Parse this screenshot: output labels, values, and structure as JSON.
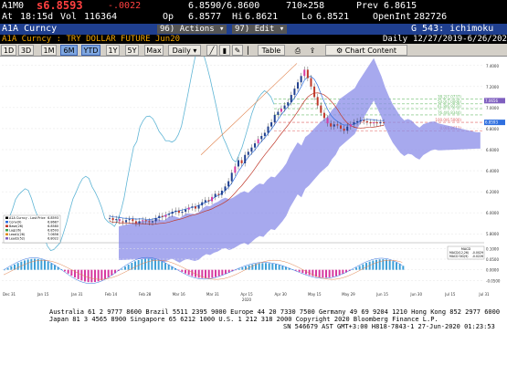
{
  "quote": {
    "ticker": "A1M0",
    "last": "s6.8593",
    "change": "-.0022",
    "bid_ask": "6.8590/6.8600",
    "size": "710×258",
    "prev_label": "Prev",
    "prev": "6.8615",
    "time_label": "At",
    "time": "18:15d",
    "vol_label": "Vol",
    "vol": "116364",
    "open_label": "Op",
    "open": "6.8577",
    "high_label": "Hi",
    "high": "6.8621",
    "low_label": "Lo",
    "low": "6.8521",
    "oi_label": "OpenInt",
    "oi": "282726"
  },
  "command": {
    "security": "A1A Curncy",
    "actions_num": "96)",
    "actions_label": "Actions",
    "edit_num": "97)",
    "edit_label": "Edit",
    "page": "G 543: ichimoku"
  },
  "info": {
    "description": "A1A Curncy : TRY DOLLAR FUTURE Jun20",
    "period_label": "Daily",
    "date_range": "12/27/2019-6/26/2020"
  },
  "toolbar": {
    "ranges": [
      "1D",
      "3D",
      "1M",
      "6M",
      "YTD",
      "1Y",
      "5Y",
      "Max"
    ],
    "active_range": "6M",
    "freq": "Daily",
    "table_label": "Table",
    "chart_content_label": "Chart Content"
  },
  "legend": {
    "items": [
      {
        "name": "A1A Curncy - Last Price",
        "value": "6.8593"
      },
      {
        "name": "Conv(9)",
        "value": "6.8687"
      },
      {
        "name": "Base(26)",
        "value": "6.8580"
      },
      {
        "name": "Lag(26)",
        "value": "6.8593"
      },
      {
        "name": "Lead1(26)",
        "value": "7.0656"
      },
      {
        "name": "Lead2(52)",
        "value": "6.8022"
      }
    ],
    "colors": [
      "#000000",
      "#2f6fdf",
      "#c0392b",
      "#2e9f4f",
      "#e08a1e",
      "#7f5fbf"
    ]
  },
  "macd_legend": {
    "title": "MACD",
    "items": [
      {
        "name": "MACD(12,26)",
        "value": "-0.0029"
      },
      {
        "name": "MACD SIG(9)",
        "value": "-0.0226"
      }
    ]
  },
  "fib": {
    "levels": [
      {
        "label": "38.2(7.0737)",
        "y": 7.08
      },
      {
        "label": "50.0(7.0006)",
        "y": 7.035
      },
      {
        "label": "61.8(6.9233)",
        "y": 6.99
      },
      {
        "label": "76.4(6.8344)",
        "y": 6.93
      },
      {
        "label": "100.0(6.5000)",
        "y": 6.86
      },
      {
        "label": "0.0(6.8611)",
        "y": 6.78
      }
    ],
    "top_label": "23.6(7.1684)",
    "peak_label": "100.0(7.1000)"
  },
  "axis": {
    "y_ticks": [
      "7.4000",
      "7.2000",
      "7.0000",
      "6.8000",
      "6.6000",
      "6.4000",
      "6.2000",
      "6.0000",
      "5.8000"
    ],
    "y_values": [
      7.4,
      7.2,
      7.0,
      6.8,
      6.6,
      6.4,
      6.2,
      6.0,
      5.8
    ],
    "macd_ticks": [
      "0.1000",
      "0.0500",
      "0.0000",
      "-0.0500"
    ],
    "macd_values": [
      0.1,
      0.05,
      0.0,
      -0.05
    ],
    "x_labels": [
      "Dec 31",
      "Jan 15",
      "Jan 31",
      "Feb 14",
      "Feb 28",
      "Mar 16",
      "Mar 31",
      "Apr 15",
      "Apr 30",
      "May 15",
      "May 29",
      "Jun 15",
      "Jun 30",
      "Jul 15",
      "Jul 31"
    ],
    "year_label": "2020",
    "last_price_tag": "6.8593",
    "lead_tag": "7.0656"
  },
  "chart_data": {
    "type": "line",
    "ylim": [
      5.75,
      7.45
    ],
    "close": [
      5.95,
      5.93,
      5.94,
      5.92,
      5.91,
      5.93,
      5.94,
      5.92,
      5.9,
      5.92,
      5.93,
      5.92,
      5.91,
      5.92,
      5.95,
      5.97,
      5.96,
      5.98,
      5.99,
      6.01,
      6.02,
      6.0,
      6.01,
      6.03,
      6.05,
      6.06,
      6.04,
      6.07,
      6.1,
      6.12,
      6.11,
      6.15,
      6.18,
      6.17,
      6.21,
      6.25,
      6.3,
      6.38,
      6.44,
      6.5,
      6.47,
      6.55,
      6.58,
      6.62,
      6.66,
      6.7,
      6.73,
      6.76,
      6.82,
      6.86,
      6.93,
      6.96,
      6.99,
      7.02,
      7.05,
      7.12,
      7.18,
      7.24,
      7.3,
      7.36,
      7.28,
      7.2,
      7.1,
      7.02,
      6.95,
      6.9,
      6.85,
      6.82,
      6.84,
      6.83,
      6.8,
      6.78,
      6.82,
      6.84,
      6.86,
      6.87,
      6.88,
      6.87,
      6.86,
      6.85,
      6.86,
      6.85,
      6.86,
      6.8593
    ]
  },
  "footer": {
    "line1": "Australia 61 2 9777 8600  Brazil 5511 2395 9000  Europe 44 20 7330 7500  Germany 49 69 9204 1210  Hong Kong 852 2977 6000",
    "line2": "Japan 81 3 4565 8900        Singapore 65 6212 1000        U.S. 1 212 318 2000            Copyright 2020 Bloomberg Finance L.P.",
    "line3": "SN 546679 AST  GMT+3:00 H818-7843-1 27-Jun-2020 01:23:53"
  }
}
